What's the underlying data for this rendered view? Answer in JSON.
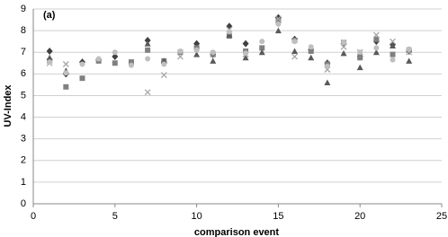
{
  "chart_data": {
    "type": "scatter",
    "annotation": "(a)",
    "x_label": "comparison event",
    "y_label": "UV-Index",
    "xlim": [
      0,
      25
    ],
    "xticks": [
      0,
      5,
      10,
      15,
      20,
      25
    ],
    "ylim": [
      0,
      9
    ],
    "yticks": [
      0,
      1,
      2,
      3,
      4,
      5,
      6,
      7,
      8,
      9
    ],
    "grid": true,
    "series": [
      {
        "marker": "diamond",
        "color": "#404040",
        "x": [
          1,
          2,
          3,
          4,
          5,
          7,
          8,
          10,
          11,
          12,
          13,
          15,
          16,
          17,
          18,
          19,
          20,
          21,
          22,
          23
        ],
        "values": [
          7.05,
          6.0,
          6.55,
          6.65,
          6.8,
          7.55,
          6.55,
          7.4,
          6.9,
          8.2,
          7.4,
          8.6,
          7.6,
          7.1,
          6.5,
          7.4,
          6.8,
          7.5,
          7.35,
          7.05
        ]
      },
      {
        "marker": "square",
        "color": "#808080",
        "x": [
          1,
          2,
          3,
          4,
          5,
          6,
          7,
          8,
          9,
          10,
          11,
          12,
          13,
          14,
          15,
          16,
          17,
          18,
          19,
          20,
          21,
          22,
          23
        ],
        "values": [
          6.6,
          5.4,
          5.8,
          6.6,
          6.5,
          6.55,
          7.1,
          6.6,
          7.0,
          7.2,
          6.9,
          7.75,
          7.05,
          7.2,
          8.45,
          7.55,
          7.05,
          6.45,
          7.45,
          6.75,
          7.6,
          6.9,
          7.1
        ]
      },
      {
        "marker": "triangle",
        "color": "#595959",
        "x": [
          1,
          2,
          7,
          8,
          10,
          11,
          12,
          13,
          14,
          15,
          16,
          17,
          18,
          19,
          20,
          21,
          22,
          23
        ],
        "values": [
          6.75,
          6.15,
          7.4,
          6.6,
          6.9,
          6.6,
          7.8,
          6.75,
          7.0,
          8.0,
          7.05,
          6.75,
          5.6,
          6.95,
          6.3,
          7.0,
          7.3,
          6.6
        ]
      },
      {
        "marker": "x",
        "color": "#a6a6a6",
        "x": [
          1,
          2,
          7,
          8,
          9,
          12,
          13,
          15,
          16,
          18,
          19,
          20,
          21,
          22,
          23
        ],
        "values": [
          6.5,
          6.45,
          5.15,
          5.95,
          6.8,
          8.05,
          6.9,
          8.55,
          6.8,
          6.2,
          7.25,
          7.0,
          7.8,
          7.5,
          7.0
        ]
      },
      {
        "marker": "circle",
        "color": "#bfbfbf",
        "x": [
          1,
          2,
          3,
          4,
          5,
          6,
          7,
          8,
          9,
          10,
          11,
          12,
          13,
          14,
          15,
          16,
          17,
          18,
          19,
          20,
          21,
          22,
          23
        ],
        "values": [
          6.55,
          6.05,
          6.45,
          6.7,
          7.0,
          6.4,
          6.7,
          6.45,
          7.05,
          7.1,
          7.0,
          7.95,
          6.95,
          7.5,
          8.3,
          7.5,
          7.25,
          6.35,
          7.45,
          7.0,
          7.2,
          6.65,
          7.15
        ]
      }
    ]
  }
}
